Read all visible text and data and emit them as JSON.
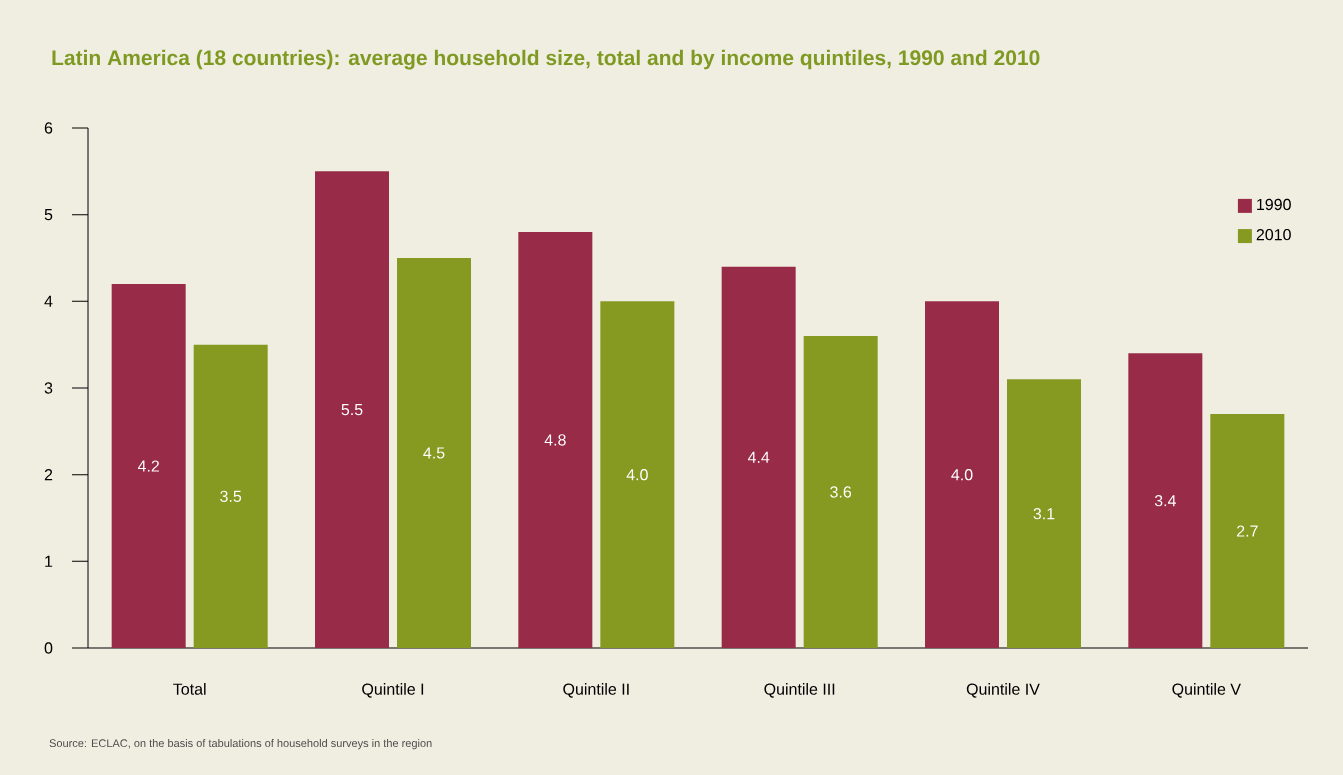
{
  "chart_data": {
    "type": "bar",
    "title": "Latin America (18 countries): average household size, total and by income quintiles, 1990 and 2010",
    "categories": [
      "Total",
      "Quintile I",
      "Quintile II",
      "Quintile III",
      "Quintile IV",
      "Quintile V"
    ],
    "series": [
      {
        "name": "1990",
        "color": "#982c48",
        "values": [
          4.2,
          5.5,
          4.8,
          4.4,
          4.0,
          3.4
        ],
        "value_labels": [
          "4.2",
          "5.5",
          "4.8",
          "4.4",
          "4.0",
          "3.4"
        ]
      },
      {
        "name": "2010",
        "color": "#869a22",
        "values": [
          3.5,
          4.5,
          4.0,
          3.6,
          3.1,
          2.7
        ],
        "value_labels": [
          "3.5",
          "4.5",
          "4.0",
          "3.6",
          "3.1",
          "2.7"
        ]
      }
    ],
    "ylim": [
      0,
      6
    ],
    "yticks": [
      0,
      1,
      2,
      3,
      4,
      5,
      6
    ],
    "grid": false,
    "legend": "top right",
    "annotations": [
      "Source: ECLAC, on the basis of tabulations of household surveys in the region"
    ]
  }
}
